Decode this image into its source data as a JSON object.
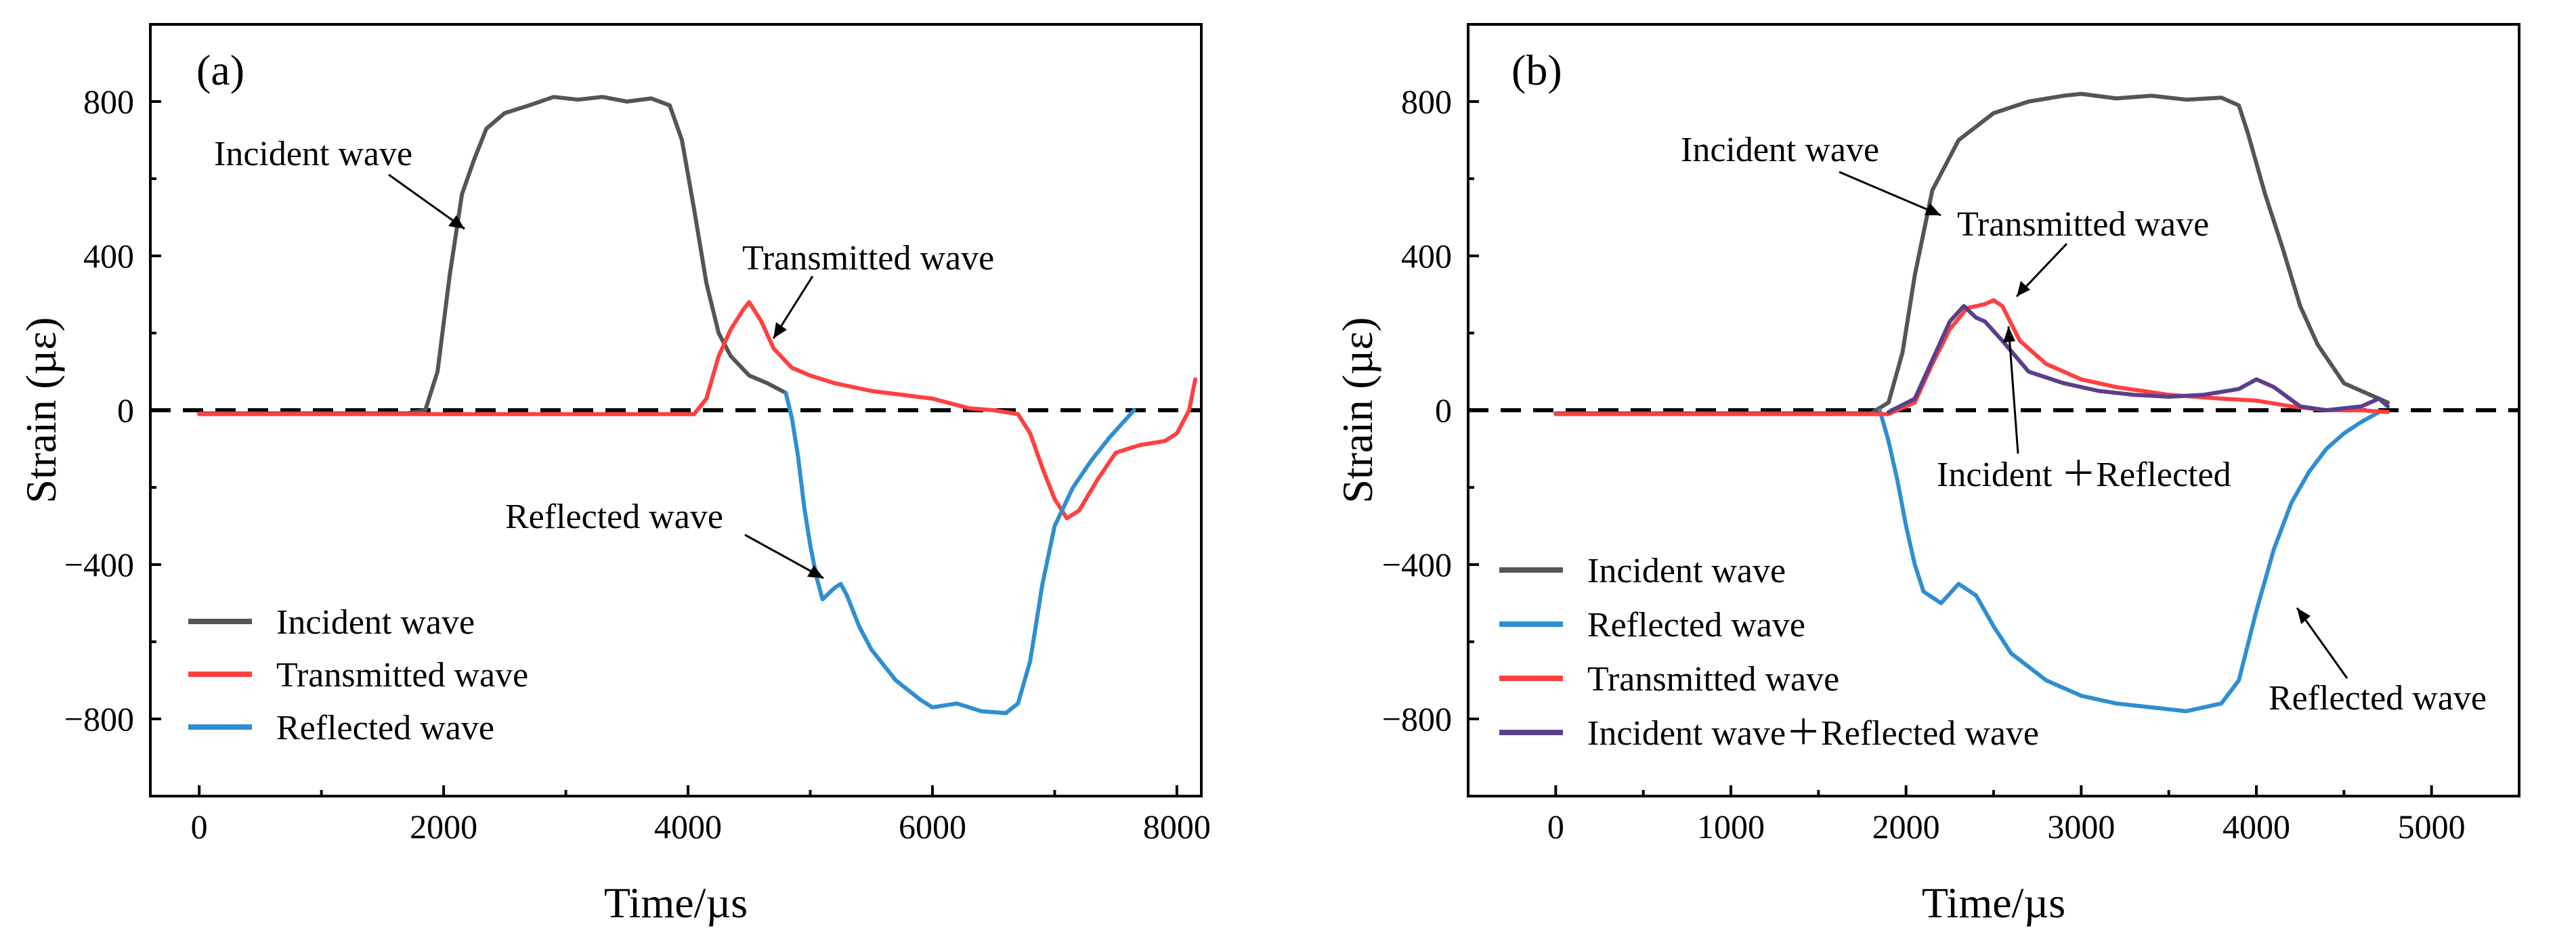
{
  "chart_data": [
    {
      "type": "line",
      "panel_label": "(a)",
      "xlabel": "Time/µs",
      "ylabel": "Strain (µε)",
      "xlim": [
        -400,
        8200
      ],
      "ylim": [
        -1000,
        1000
      ],
      "xticks": [
        0,
        2000,
        4000,
        6000,
        8000
      ],
      "yticks": [
        800,
        400,
        0,
        -400,
        -800
      ],
      "ytick_labels": [
        "800",
        "400",
        "0",
        "−400",
        "−800"
      ],
      "zero_line": true,
      "legend_position": "bottom-left",
      "series": [
        {
          "name": "Incident wave",
          "color": "#555555",
          "points": [
            [
              0,
              -8
            ],
            [
              1700,
              -8
            ],
            [
              1850,
              0
            ],
            [
              1950,
              100
            ],
            [
              2050,
              350
            ],
            [
              2150,
              560
            ],
            [
              2250,
              650
            ],
            [
              2350,
              730
            ],
            [
              2500,
              770
            ],
            [
              2700,
              790
            ],
            [
              2900,
              812
            ],
            [
              3100,
              805
            ],
            [
              3300,
              812
            ],
            [
              3500,
              800
            ],
            [
              3700,
              808
            ],
            [
              3850,
              790
            ],
            [
              3950,
              700
            ],
            [
              4050,
              520
            ],
            [
              4150,
              330
            ],
            [
              4250,
              200
            ],
            [
              4350,
              140
            ],
            [
              4500,
              90
            ],
            [
              4650,
              70
            ],
            [
              4800,
              45
            ]
          ]
        },
        {
          "name": "Transmitted wave",
          "color": "#ff4040",
          "points": [
            [
              0,
              -10
            ],
            [
              4050,
              -10
            ],
            [
              4150,
              30
            ],
            [
              4250,
              140
            ],
            [
              4350,
              210
            ],
            [
              4450,
              260
            ],
            [
              4500,
              280
            ],
            [
              4600,
              230
            ],
            [
              4700,
              160
            ],
            [
              4850,
              110
            ],
            [
              5000,
              90
            ],
            [
              5200,
              70
            ],
            [
              5500,
              50
            ],
            [
              6000,
              30
            ],
            [
              6300,
              5
            ],
            [
              6500,
              0
            ],
            [
              6700,
              -10
            ],
            [
              6800,
              -60
            ],
            [
              6900,
              -150
            ],
            [
              7000,
              -230
            ],
            [
              7100,
              -280
            ],
            [
              7200,
              -260
            ],
            [
              7350,
              -180
            ],
            [
              7500,
              -110
            ],
            [
              7700,
              -90
            ],
            [
              7900,
              -80
            ],
            [
              8000,
              -60
            ],
            [
              8100,
              0
            ],
            [
              8150,
              80
            ]
          ]
        },
        {
          "name": "Reflected wave",
          "color": "#2e8fd0",
          "points": [
            [
              4800,
              45
            ],
            [
              4850,
              -20
            ],
            [
              4900,
              -120
            ],
            [
              4950,
              -250
            ],
            [
              5000,
              -350
            ],
            [
              5050,
              -430
            ],
            [
              5100,
              -490
            ],
            [
              5200,
              -460
            ],
            [
              5250,
              -450
            ],
            [
              5300,
              -480
            ],
            [
              5400,
              -560
            ],
            [
              5500,
              -620
            ],
            [
              5700,
              -700
            ],
            [
              5900,
              -750
            ],
            [
              6000,
              -770
            ],
            [
              6200,
              -760
            ],
            [
              6400,
              -780
            ],
            [
              6600,
              -785
            ],
            [
              6700,
              -760
            ],
            [
              6800,
              -650
            ],
            [
              6900,
              -450
            ],
            [
              7000,
              -300
            ],
            [
              7150,
              -200
            ],
            [
              7300,
              -130
            ],
            [
              7450,
              -70
            ],
            [
              7650,
              0
            ]
          ]
        }
      ],
      "annotations": [
        {
          "text": "Incident wave",
          "target": [
            2200,
            580
          ]
        },
        {
          "text": "Transmitted wave",
          "target": [
            4520,
            200
          ]
        },
        {
          "text": "Reflected wave",
          "target": [
            5080,
            -430
          ]
        }
      ]
    },
    {
      "type": "line",
      "panel_label": "(b)",
      "xlabel": "Time/µs",
      "ylabel": "Strain (µε)",
      "xlim": [
        -500,
        5500
      ],
      "ylim": [
        -1000,
        1000
      ],
      "xticks": [
        0,
        1000,
        2000,
        3000,
        4000,
        5000
      ],
      "yticks": [
        800,
        400,
        0,
        -400,
        -800
      ],
      "ytick_labels": [
        "800",
        "400",
        "0",
        "−400",
        "−800"
      ],
      "zero_line": true,
      "legend_position": "bottom-left",
      "series": [
        {
          "name": "Incident wave",
          "color": "#555555",
          "points": [
            [
              0,
              -8
            ],
            [
              1800,
              -8
            ],
            [
              1900,
              20
            ],
            [
              1980,
              150
            ],
            [
              2050,
              350
            ],
            [
              2150,
              570
            ],
            [
              2300,
              700
            ],
            [
              2500,
              770
            ],
            [
              2700,
              800
            ],
            [
              2900,
              815
            ],
            [
              3000,
              820
            ],
            [
              3200,
              808
            ],
            [
              3400,
              815
            ],
            [
              3600,
              805
            ],
            [
              3800,
              810
            ],
            [
              3900,
              790
            ],
            [
              3950,
              720
            ],
            [
              4050,
              560
            ],
            [
              4150,
              420
            ],
            [
              4250,
              270
            ],
            [
              4350,
              170
            ],
            [
              4500,
              70
            ],
            [
              4650,
              40
            ],
            [
              4750,
              20
            ]
          ]
        },
        {
          "name": "Reflected wave",
          "color": "#2e8fd0",
          "points": [
            [
              1850,
              0
            ],
            [
              1900,
              -80
            ],
            [
              1950,
              -180
            ],
            [
              2000,
              -300
            ],
            [
              2050,
              -400
            ],
            [
              2100,
              -470
            ],
            [
              2200,
              -500
            ],
            [
              2300,
              -450
            ],
            [
              2400,
              -480
            ],
            [
              2500,
              -560
            ],
            [
              2600,
              -630
            ],
            [
              2800,
              -700
            ],
            [
              3000,
              -740
            ],
            [
              3200,
              -760
            ],
            [
              3400,
              -770
            ],
            [
              3600,
              -780
            ],
            [
              3800,
              -760
            ],
            [
              3900,
              -700
            ],
            [
              4000,
              -520
            ],
            [
              4100,
              -360
            ],
            [
              4200,
              -240
            ],
            [
              4300,
              -160
            ],
            [
              4400,
              -100
            ],
            [
              4500,
              -60
            ],
            [
              4600,
              -30
            ],
            [
              4700,
              -5
            ]
          ]
        },
        {
          "name": "Transmitted wave",
          "color": "#ff4040",
          "points": [
            [
              0,
              -10
            ],
            [
              1900,
              -10
            ],
            [
              2050,
              20
            ],
            [
              2150,
              120
            ],
            [
              2250,
              210
            ],
            [
              2350,
              265
            ],
            [
              2450,
              275
            ],
            [
              2500,
              285
            ],
            [
              2550,
              270
            ],
            [
              2650,
              180
            ],
            [
              2800,
              120
            ],
            [
              3000,
              80
            ],
            [
              3200,
              60
            ],
            [
              3500,
              40
            ],
            [
              3800,
              30
            ],
            [
              4000,
              25
            ],
            [
              4200,
              10
            ],
            [
              4400,
              0
            ],
            [
              4600,
              0
            ],
            [
              4750,
              -5
            ]
          ]
        },
        {
          "name": "Incident wave＋Reflected wave",
          "color": "#5b3f8c",
          "points": [
            [
              1900,
              -5
            ],
            [
              2050,
              30
            ],
            [
              2150,
              130
            ],
            [
              2250,
              230
            ],
            [
              2330,
              270
            ],
            [
              2400,
              240
            ],
            [
              2450,
              230
            ],
            [
              2550,
              180
            ],
            [
              2700,
              100
            ],
            [
              2900,
              70
            ],
            [
              3100,
              50
            ],
            [
              3300,
              40
            ],
            [
              3500,
              35
            ],
            [
              3700,
              40
            ],
            [
              3900,
              55
            ],
            [
              4000,
              80
            ],
            [
              4100,
              60
            ],
            [
              4250,
              10
            ],
            [
              4400,
              0
            ],
            [
              4600,
              10
            ],
            [
              4700,
              30
            ],
            [
              4750,
              10
            ]
          ]
        }
      ],
      "annotations": [
        {
          "text": "Incident wave",
          "target": [
            2150,
            520
          ]
        },
        {
          "text": "Transmitted wave",
          "target": [
            2480,
            270
          ]
        },
        {
          "text": "Incident ＋Reflected",
          "target": [
            2380,
            230
          ]
        },
        {
          "text": "Reflected wave",
          "target": [
            4000,
            -510
          ]
        }
      ]
    }
  ]
}
